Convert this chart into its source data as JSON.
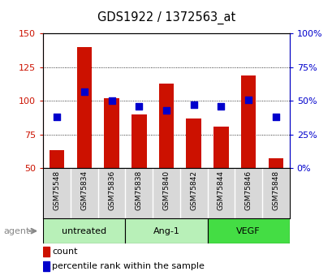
{
  "title": "GDS1922 / 1372563_at",
  "samples": [
    "GSM75548",
    "GSM75834",
    "GSM75836",
    "GSM75838",
    "GSM75840",
    "GSM75842",
    "GSM75844",
    "GSM75846",
    "GSM75848"
  ],
  "count_values": [
    63,
    140,
    102,
    90,
    113,
    87,
    81,
    119,
    57
  ],
  "percentile_values": [
    38,
    57,
    50,
    46,
    43,
    47,
    46,
    51,
    38
  ],
  "groups": [
    {
      "label": "untreated",
      "start": 0,
      "end": 3,
      "color": "#b8f0b8"
    },
    {
      "label": "Ang-1",
      "start": 3,
      "end": 6,
      "color": "#b8f0b8"
    },
    {
      "label": "VEGF",
      "start": 6,
      "end": 9,
      "color": "#44dd44"
    }
  ],
  "ylim_left": [
    50,
    150
  ],
  "yticks_left": [
    50,
    75,
    100,
    125,
    150
  ],
  "ylim_right": [
    0,
    100
  ],
  "yticks_right": [
    0,
    25,
    50,
    75,
    100
  ],
  "bar_color": "#cc1100",
  "dot_color": "#0000cc",
  "bar_bottom": 50,
  "bar_width": 0.55,
  "dot_size": 30,
  "agent_label": "agent",
  "legend_count": "count",
  "legend_percentile": "percentile rank within the sample",
  "background_color": "#ffffff",
  "tick_bg_color": "#d8d8d8"
}
